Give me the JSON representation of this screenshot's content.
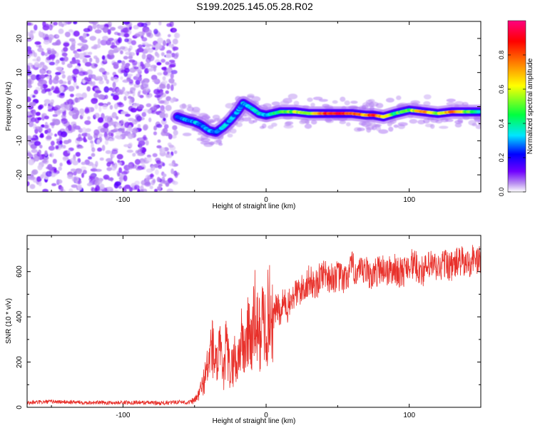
{
  "title": "S199.2025.145.05.28.R02",
  "chart_data": [
    {
      "type": "heatmap",
      "xlabel": "Height of straight line (km)",
      "ylabel": "Frequency (Hz)",
      "xlim": [
        -167,
        150
      ],
      "ylim": [
        -25,
        25
      ],
      "xticks": [
        "-100",
        "0",
        "100"
      ],
      "yticks": [
        "20",
        "10",
        "0",
        "-10",
        "-20"
      ],
      "colorbar": {
        "label": "Normalized spectral amplitude",
        "range": [
          0,
          1
        ],
        "ticks": [
          "0.0",
          "0.2",
          "0.4",
          "0.6",
          "0.8"
        ],
        "colors": [
          "#ffffff",
          "#b88ef0",
          "#7000ff",
          "#0000ff",
          "#00e6ff",
          "#00ff40",
          "#ffff00",
          "#ff8000",
          "#ff0000",
          "#ff0080"
        ]
      },
      "noise_region": {
        "x_range": [
          -167,
          -62
        ],
        "y_range": [
          -25,
          25
        ],
        "amplitude_range": [
          0.0,
          0.3
        ]
      },
      "signal_track": [
        {
          "x": -62,
          "f": -3.0,
          "amp": 0.25
        },
        {
          "x": -55,
          "f": -4.0,
          "amp": 0.3
        },
        {
          "x": -50,
          "f": -4.5,
          "amp": 0.3
        },
        {
          "x": -45,
          "f": -5.5,
          "amp": 0.25
        },
        {
          "x": -40,
          "f": -7.0,
          "amp": 0.3
        },
        {
          "x": -35,
          "f": -7.5,
          "amp": 0.25
        },
        {
          "x": -30,
          "f": -6.0,
          "amp": 0.3
        },
        {
          "x": -25,
          "f": -4.0,
          "amp": 0.3
        },
        {
          "x": -20,
          "f": -1.5,
          "amp": 0.25
        },
        {
          "x": -16,
          "f": 1.0,
          "amp": 0.3
        },
        {
          "x": -10,
          "f": -0.5,
          "amp": 0.35
        },
        {
          "x": -5,
          "f": -2.0,
          "amp": 0.35
        },
        {
          "x": 0,
          "f": -2.5,
          "amp": 0.35
        },
        {
          "x": 10,
          "f": -1.5,
          "amp": 0.45
        },
        {
          "x": 20,
          "f": -1.5,
          "amp": 0.55
        },
        {
          "x": 30,
          "f": -2.0,
          "amp": 0.5
        },
        {
          "x": 40,
          "f": -2.0,
          "amp": 0.8
        },
        {
          "x": 50,
          "f": -2.0,
          "amp": 0.9
        },
        {
          "x": 60,
          "f": -2.0,
          "amp": 0.8
        },
        {
          "x": 70,
          "f": -2.5,
          "amp": 0.7
        },
        {
          "x": 75,
          "f": -2.5,
          "amp": 0.9
        },
        {
          "x": 82,
          "f": -3.0,
          "amp": 0.65
        },
        {
          "x": 90,
          "f": -2.0,
          "amp": 0.45
        },
        {
          "x": 100,
          "f": -1.0,
          "amp": 0.5
        },
        {
          "x": 110,
          "f": -1.5,
          "amp": 0.75
        },
        {
          "x": 120,
          "f": -2.0,
          "amp": 0.55
        },
        {
          "x": 130,
          "f": -1.5,
          "amp": 0.75
        },
        {
          "x": 140,
          "f": -1.5,
          "amp": 0.5
        },
        {
          "x": 150,
          "f": -1.5,
          "amp": 0.4
        }
      ]
    },
    {
      "type": "line",
      "xlabel": "Height of straight line (km)",
      "ylabel": "SNR (10 * v/v)",
      "xlim": [
        -167,
        150
      ],
      "ylim": [
        0,
        760
      ],
      "xticks": [
        "-100",
        "0",
        "100"
      ],
      "yticks": [
        "0",
        "200",
        "400",
        "600"
      ],
      "color": "#e8302a",
      "series": [
        {
          "x": [
            -167,
            -150,
            -130,
            -110,
            -90,
            -70,
            -60,
            -55,
            -50,
            -48,
            -45,
            -42,
            -40,
            -38,
            -35,
            -32,
            -30,
            -28,
            -25,
            -22,
            -20,
            -18,
            -15,
            -12,
            -10,
            -8,
            -5,
            -2,
            0,
            2,
            5,
            8,
            10,
            12,
            15,
            20,
            25,
            30,
            35,
            40,
            45,
            50,
            55,
            60,
            65,
            70,
            75,
            80,
            85,
            90,
            95,
            100,
            105,
            110,
            115,
            120,
            125,
            130,
            135,
            140,
            145,
            150
          ],
          "y": [
            20,
            25,
            22,
            20,
            22,
            18,
            25,
            20,
            30,
            45,
            90,
            150,
            200,
            280,
            180,
            240,
            130,
            270,
            150,
            220,
            180,
            300,
            250,
            350,
            280,
            400,
            320,
            380,
            360,
            420,
            400,
            450,
            390,
            470,
            440,
            500,
            520,
            560,
            540,
            600,
            570,
            580,
            560,
            620,
            590,
            600,
            580,
            620,
            600,
            610,
            590,
            640,
            620,
            600,
            630,
            610,
            640,
            620,
            650,
            630,
            660,
            640
          ]
        }
      ]
    }
  ]
}
